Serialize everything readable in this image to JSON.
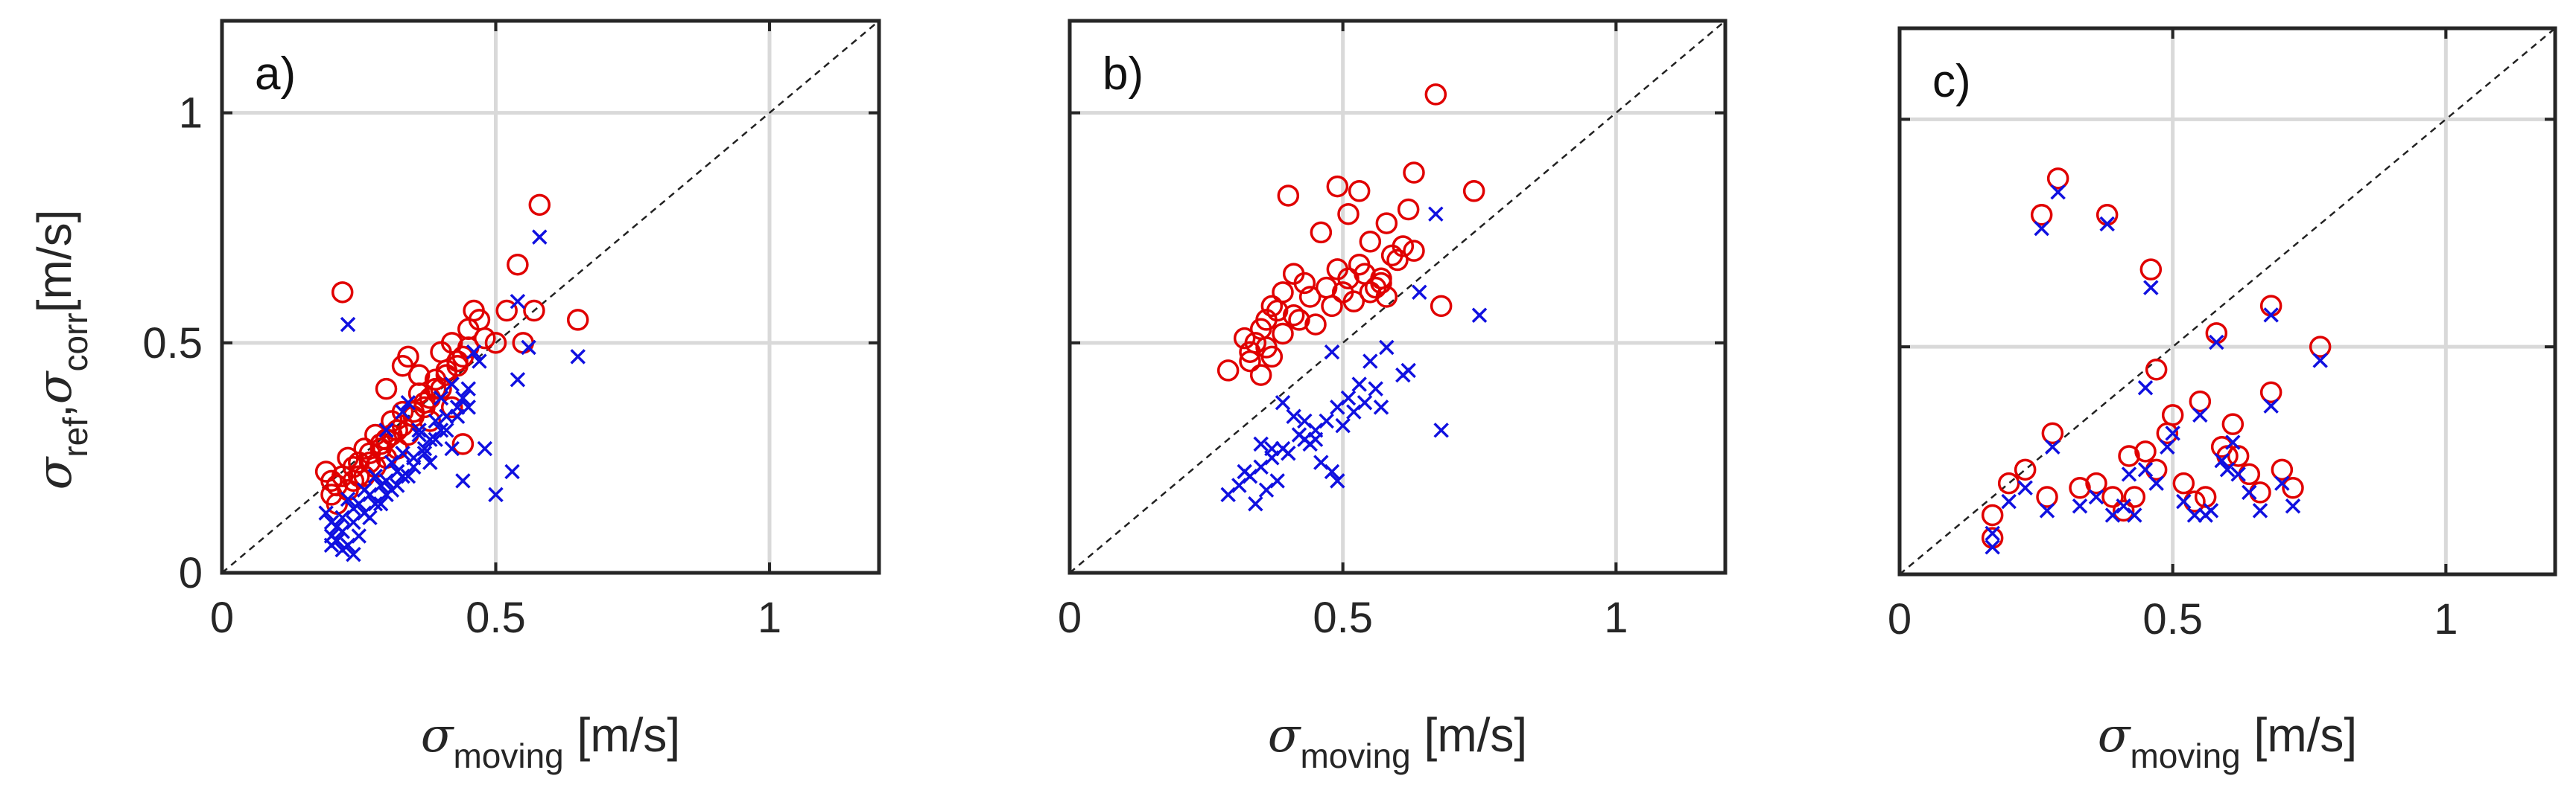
{
  "figure": {
    "ylabel": {
      "sigma": "σ",
      "sub1": "ref",
      "comma": ",",
      "sigma2": "σ",
      "sub2": "corr",
      "unit": "[m/s]"
    },
    "xlabel": {
      "sigma": "σ",
      "sub": "moving",
      "unit": "[m/s]"
    }
  },
  "chart_data": [
    {
      "type": "scatter",
      "panel_label": "a)",
      "xlim": [
        0,
        1.2
      ],
      "ylim": [
        0,
        1.2
      ],
      "xticks": [
        {
          "v": 0,
          "label": "0"
        },
        {
          "v": 0.5,
          "label": "0.5"
        },
        {
          "v": 1,
          "label": "1"
        }
      ],
      "yticks": [
        {
          "v": 0,
          "label": "0"
        },
        {
          "v": 0.5,
          "label": "0.5"
        },
        {
          "v": 1,
          "label": "1"
        }
      ],
      "grid": true,
      "reference_line": "y = x (dashed)",
      "series": [
        {
          "name": "σ_ref",
          "marker": "circle",
          "color": "#e00000",
          "x": [
            0.22,
            0.58,
            0.54,
            0.57,
            0.65,
            0.46,
            0.47,
            0.45,
            0.44,
            0.43,
            0.42,
            0.41,
            0.4,
            0.4,
            0.39,
            0.38,
            0.37,
            0.36,
            0.35,
            0.34,
            0.33,
            0.33,
            0.32,
            0.31,
            0.3,
            0.3,
            0.29,
            0.28,
            0.27,
            0.26,
            0.25,
            0.24,
            0.23,
            0.22,
            0.21,
            0.2,
            0.19,
            0.2,
            0.21,
            0.23,
            0.25,
            0.27,
            0.29,
            0.31,
            0.33,
            0.35,
            0.37,
            0.39,
            0.41,
            0.43,
            0.45,
            0.48,
            0.5,
            0.52,
            0.55,
            0.36,
            0.38,
            0.42,
            0.44,
            0.34,
            0.32,
            0.3,
            0.28,
            0.26,
            0.24
          ],
          "y": [
            0.61,
            0.8,
            0.67,
            0.57,
            0.55,
            0.57,
            0.55,
            0.49,
            0.47,
            0.45,
            0.5,
            0.43,
            0.48,
            0.4,
            0.42,
            0.38,
            0.36,
            0.39,
            0.34,
            0.47,
            0.45,
            0.35,
            0.31,
            0.33,
            0.29,
            0.4,
            0.28,
            0.3,
            0.26,
            0.27,
            0.24,
            0.23,
            0.25,
            0.21,
            0.19,
            0.2,
            0.22,
            0.17,
            0.15,
            0.18,
            0.21,
            0.24,
            0.27,
            0.3,
            0.32,
            0.35,
            0.37,
            0.4,
            0.44,
            0.46,
            0.53,
            0.51,
            0.5,
            0.57,
            0.5,
            0.43,
            0.33,
            0.36,
            0.28,
            0.3,
            0.27,
            0.25,
            0.23,
            0.21,
            0.2
          ]
        },
        {
          "name": "σ_corr",
          "marker": "cross",
          "color": "#1010e0",
          "x": [
            0.23,
            0.58,
            0.54,
            0.56,
            0.65,
            0.46,
            0.47,
            0.45,
            0.44,
            0.43,
            0.42,
            0.41,
            0.4,
            0.4,
            0.39,
            0.38,
            0.37,
            0.36,
            0.35,
            0.34,
            0.33,
            0.33,
            0.32,
            0.31,
            0.3,
            0.3,
            0.29,
            0.28,
            0.27,
            0.26,
            0.25,
            0.24,
            0.23,
            0.22,
            0.21,
            0.2,
            0.19,
            0.2,
            0.21,
            0.22,
            0.23,
            0.24,
            0.25,
            0.27,
            0.29,
            0.31,
            0.33,
            0.35,
            0.37,
            0.39,
            0.41,
            0.43,
            0.45,
            0.48,
            0.5,
            0.53,
            0.54,
            0.36,
            0.38,
            0.42,
            0.44,
            0.34,
            0.32,
            0.3,
            0.28,
            0.26,
            0.24,
            0.22,
            0.21,
            0.2
          ],
          "y": [
            0.54,
            0.73,
            0.59,
            0.49,
            0.47,
            0.48,
            0.46,
            0.4,
            0.38,
            0.36,
            0.41,
            0.34,
            0.38,
            0.31,
            0.33,
            0.29,
            0.27,
            0.3,
            0.25,
            0.37,
            0.35,
            0.26,
            0.22,
            0.24,
            0.2,
            0.31,
            0.19,
            0.21,
            0.17,
            0.18,
            0.15,
            0.14,
            0.16,
            0.12,
            0.1,
            0.11,
            0.13,
            0.08,
            0.07,
            0.05,
            0.06,
            0.04,
            0.08,
            0.12,
            0.15,
            0.18,
            0.21,
            0.23,
            0.26,
            0.29,
            0.31,
            0.34,
            0.36,
            0.27,
            0.17,
            0.22,
            0.42,
            0.31,
            0.24,
            0.27,
            0.2,
            0.21,
            0.19,
            0.17,
            0.15,
            0.13,
            0.11,
            0.09,
            0.07,
            0.06
          ]
        }
      ]
    },
    {
      "type": "scatter",
      "panel_label": "b)",
      "xlim": [
        0,
        1.2
      ],
      "ylim": [
        0,
        1.2
      ],
      "xticks": [
        {
          "v": 0,
          "label": "0"
        },
        {
          "v": 0.5,
          "label": "0.5"
        },
        {
          "v": 1,
          "label": "1"
        }
      ],
      "yticks": [
        {
          "v": 0,
          "label": ""
        },
        {
          "v": 0.5,
          "label": ""
        },
        {
          "v": 1,
          "label": ""
        }
      ],
      "grid": true,
      "reference_line": "y = x (dashed)",
      "series": [
        {
          "name": "σ_ref",
          "marker": "circle",
          "color": "#e00000",
          "x": [
            0.67,
            0.4,
            0.49,
            0.53,
            0.63,
            0.62,
            0.74,
            0.58,
            0.55,
            0.51,
            0.46,
            0.43,
            0.41,
            0.39,
            0.37,
            0.36,
            0.35,
            0.34,
            0.33,
            0.33,
            0.35,
            0.37,
            0.39,
            0.41,
            0.44,
            0.47,
            0.49,
            0.51,
            0.53,
            0.55,
            0.57,
            0.59,
            0.61,
            0.63,
            0.68,
            0.29,
            0.32,
            0.38,
            0.45,
            0.5,
            0.52,
            0.54,
            0.56,
            0.58,
            0.6,
            0.48,
            0.42,
            0.36,
            0.57
          ],
          "y": [
            1.04,
            0.82,
            0.84,
            0.83,
            0.87,
            0.79,
            0.83,
            0.76,
            0.72,
            0.78,
            0.74,
            0.63,
            0.65,
            0.61,
            0.58,
            0.55,
            0.53,
            0.5,
            0.48,
            0.46,
            0.43,
            0.47,
            0.52,
            0.56,
            0.6,
            0.62,
            0.66,
            0.64,
            0.67,
            0.61,
            0.63,
            0.69,
            0.71,
            0.7,
            0.58,
            0.44,
            0.51,
            0.57,
            0.54,
            0.61,
            0.59,
            0.65,
            0.62,
            0.6,
            0.68,
            0.58,
            0.55,
            0.49,
            0.64
          ]
        },
        {
          "name": "σ_corr",
          "marker": "cross",
          "color": "#1010e0",
          "x": [
            0.67,
            0.75,
            0.64,
            0.62,
            0.58,
            0.55,
            0.53,
            0.51,
            0.49,
            0.47,
            0.45,
            0.43,
            0.41,
            0.39,
            0.37,
            0.35,
            0.33,
            0.31,
            0.29,
            0.36,
            0.38,
            0.4,
            0.42,
            0.44,
            0.46,
            0.48,
            0.5,
            0.52,
            0.54,
            0.56,
            0.68,
            0.34,
            0.32,
            0.39,
            0.45,
            0.49,
            0.57,
            0.61,
            0.48,
            0.43,
            0.37,
            0.35
          ],
          "y": [
            0.78,
            0.56,
            0.61,
            0.44,
            0.49,
            0.46,
            0.41,
            0.38,
            0.36,
            0.33,
            0.31,
            0.29,
            0.34,
            0.27,
            0.25,
            0.23,
            0.21,
            0.19,
            0.17,
            0.18,
            0.2,
            0.26,
            0.3,
            0.28,
            0.24,
            0.22,
            0.32,
            0.35,
            0.37,
            0.4,
            0.31,
            0.15,
            0.22,
            0.37,
            0.29,
            0.2,
            0.36,
            0.43,
            0.48,
            0.33,
            0.27,
            0.28
          ]
        }
      ]
    },
    {
      "type": "scatter",
      "panel_label": "c)",
      "xlim": [
        0,
        1.2
      ],
      "ylim": [
        0,
        1.2
      ],
      "xticks": [
        {
          "v": 0,
          "label": "0"
        },
        {
          "v": 0.5,
          "label": "0.5"
        },
        {
          "v": 1,
          "label": "1"
        }
      ],
      "yticks": [
        {
          "v": 0,
          "label": ""
        },
        {
          "v": 0.5,
          "label": ""
        },
        {
          "v": 1,
          "label": ""
        }
      ],
      "grid": true,
      "reference_line": "y = x (dashed)",
      "series": [
        {
          "name": "σ_ref",
          "marker": "circle",
          "color": "#e00000",
          "x": [
            0.29,
            0.26,
            0.38,
            0.46,
            0.47,
            0.58,
            0.68,
            0.77,
            0.68,
            0.61,
            0.55,
            0.5,
            0.45,
            0.42,
            0.39,
            0.36,
            0.33,
            0.28,
            0.27,
            0.23,
            0.2,
            0.17,
            0.17,
            0.43,
            0.47,
            0.49,
            0.52,
            0.56,
            0.59,
            0.62,
            0.64,
            0.66,
            0.7,
            0.72,
            0.6,
            0.54,
            0.41
          ],
          "y": [
            0.87,
            0.79,
            0.79,
            0.67,
            0.45,
            0.53,
            0.59,
            0.5,
            0.4,
            0.33,
            0.38,
            0.35,
            0.27,
            0.26,
            0.17,
            0.2,
            0.19,
            0.31,
            0.17,
            0.23,
            0.2,
            0.13,
            0.08,
            0.17,
            0.23,
            0.31,
            0.2,
            0.17,
            0.28,
            0.26,
            0.22,
            0.18,
            0.23,
            0.19,
            0.26,
            0.16,
            0.14
          ]
        },
        {
          "name": "σ_corr",
          "marker": "cross",
          "color": "#1010e0",
          "x": [
            0.29,
            0.26,
            0.38,
            0.46,
            0.45,
            0.58,
            0.68,
            0.77,
            0.68,
            0.61,
            0.55,
            0.5,
            0.45,
            0.42,
            0.39,
            0.36,
            0.33,
            0.28,
            0.27,
            0.23,
            0.2,
            0.17,
            0.17,
            0.43,
            0.47,
            0.49,
            0.52,
            0.56,
            0.59,
            0.62,
            0.64,
            0.66,
            0.7,
            0.72,
            0.6,
            0.54,
            0.41,
            0.57
          ],
          "y": [
            0.84,
            0.76,
            0.77,
            0.63,
            0.41,
            0.51,
            0.57,
            0.47,
            0.37,
            0.29,
            0.35,
            0.31,
            0.23,
            0.22,
            0.13,
            0.17,
            0.15,
            0.28,
            0.14,
            0.19,
            0.16,
            0.09,
            0.06,
            0.13,
            0.2,
            0.28,
            0.16,
            0.13,
            0.25,
            0.22,
            0.18,
            0.14,
            0.2,
            0.15,
            0.23,
            0.13,
            0.15,
            0.14
          ]
        }
      ]
    }
  ]
}
